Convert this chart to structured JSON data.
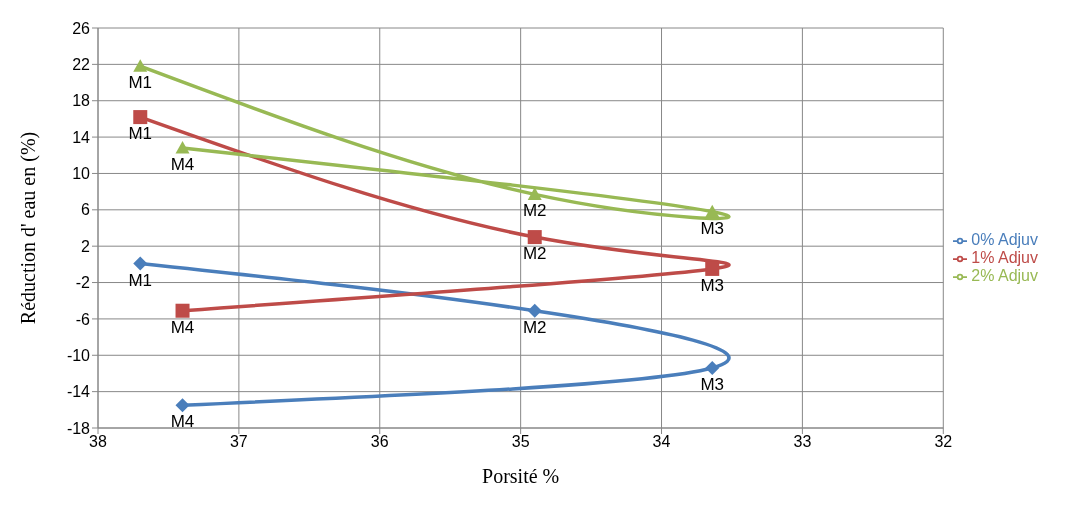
{
  "chart_data": {
    "type": "line",
    "xlabel": "Porsité %",
    "ylabel": "Réduction d' eau en (%)",
    "xlim": [
      38,
      32
    ],
    "xticks": [
      38,
      37,
      36,
      35,
      34,
      33,
      32
    ],
    "ylim": [
      -18,
      26
    ],
    "yticks": [
      -18,
      -14,
      -10,
      -6,
      -2,
      2,
      6,
      10,
      14,
      18,
      22,
      26
    ],
    "grid": true,
    "legend": "right",
    "line_style": "solid",
    "series": [
      {
        "name": "0% Adjuv",
        "color": "#4a7ebb",
        "marker": "diamond",
        "x": [
          37.7,
          34.9,
          33.64,
          37.4
        ],
        "values": [
          0.1,
          -5.1,
          -11.4,
          -15.5
        ]
      },
      {
        "name": "1% Adjuv",
        "color": "#be4b48",
        "marker": "square",
        "x": [
          37.7,
          34.9,
          33.64,
          37.4
        ],
        "values": [
          16.2,
          3.0,
          -0.5,
          -5.1
        ]
      },
      {
        "name": "2% Adjuv",
        "color": "#98b954",
        "marker": "triangle",
        "x": [
          37.7,
          34.9,
          33.64,
          37.4
        ],
        "values": [
          21.8,
          7.7,
          5.8,
          12.8
        ]
      }
    ],
    "annotations": [
      {
        "text": "M1",
        "x": 37.7,
        "y": 0.1
      },
      {
        "text": "M2",
        "x": 34.9,
        "y": -5.1
      },
      {
        "text": "M3",
        "x": 33.64,
        "y": -11.4
      },
      {
        "text": "M4",
        "x": 37.4,
        "y": -15.5
      },
      {
        "text": "M1",
        "x": 37.7,
        "y": 16.2
      },
      {
        "text": "M2",
        "x": 34.9,
        "y": 3.0
      },
      {
        "text": "M3",
        "x": 33.64,
        "y": -0.5
      },
      {
        "text": "M4",
        "x": 37.4,
        "y": -5.1
      },
      {
        "text": "M1",
        "x": 37.7,
        "y": 21.8
      },
      {
        "text": "M2",
        "x": 34.9,
        "y": 7.7
      },
      {
        "text": "M3",
        "x": 33.64,
        "y": 5.8
      },
      {
        "text": "M4",
        "x": 37.4,
        "y": 12.8
      }
    ]
  }
}
